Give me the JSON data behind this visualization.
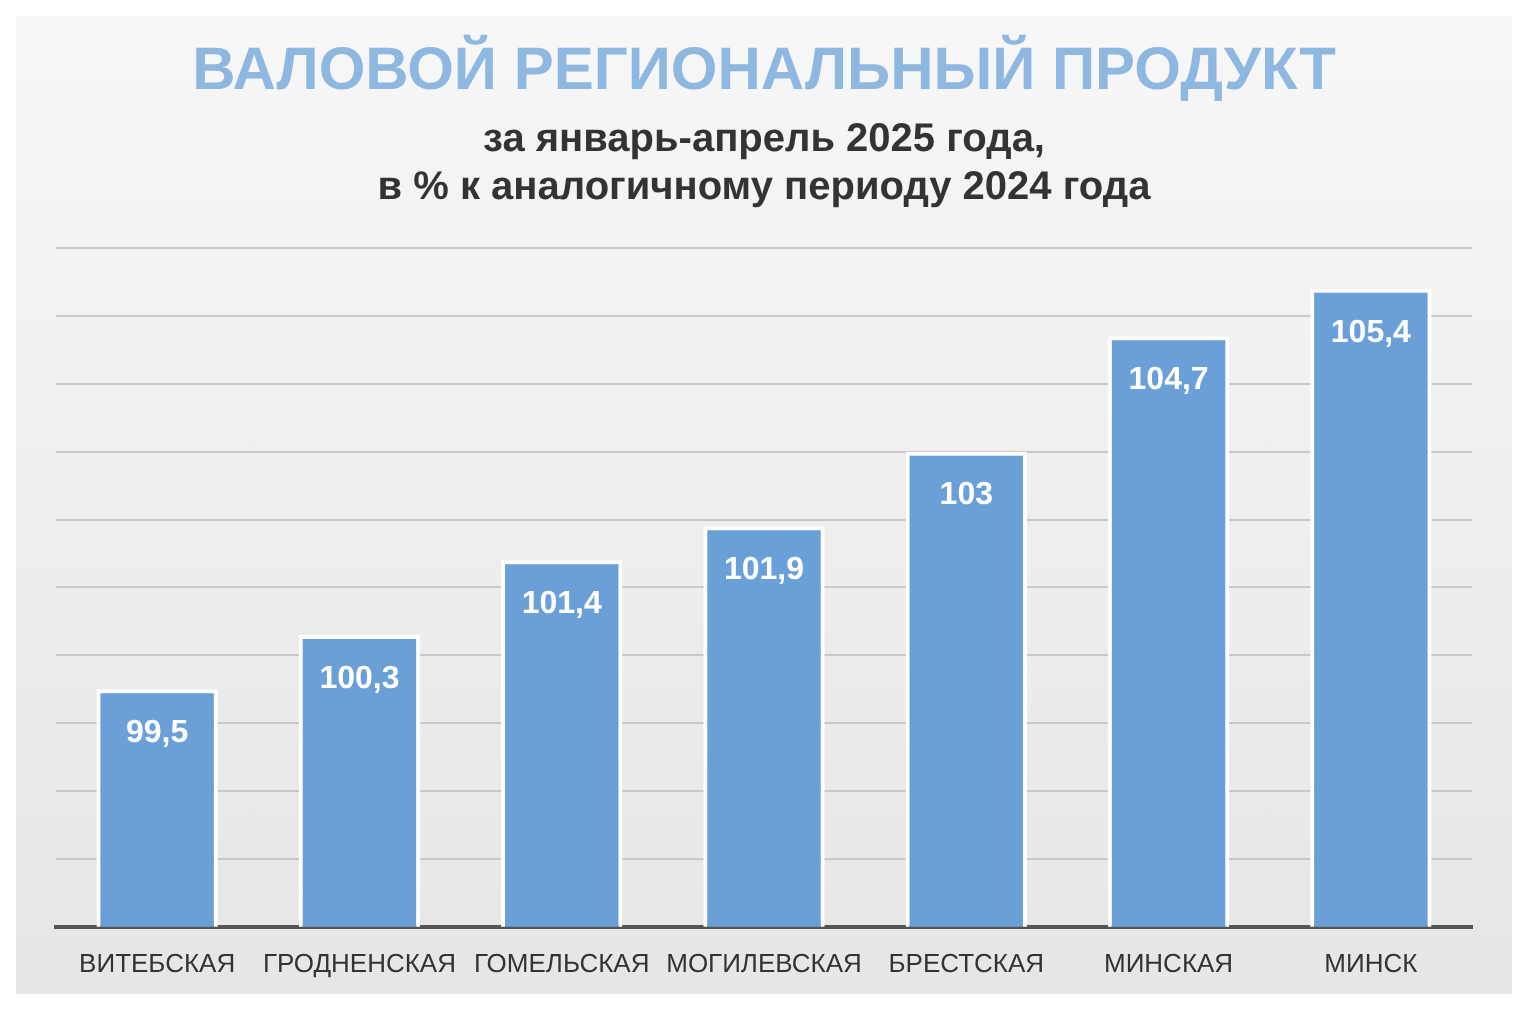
{
  "chart_data": {
    "type": "bar",
    "title": "ВАЛОВОЙ РЕГИОНАЛЬНЫЙ ПРОДУКТ",
    "subtitle": "за январь-апрель 2025 года,\nв % к аналогичному периоду 2024 года",
    "categories": [
      "ВИТЕБСКАЯ",
      "ГРОДНЕНСКАЯ",
      "ГОМЕЛЬСКАЯ",
      "МОГИЛЕВСКАЯ",
      "БРЕСТСКАЯ",
      "МИНСКАЯ",
      "МИНСК"
    ],
    "values": [
      99.5,
      100.3,
      101.4,
      101.9,
      103,
      104.7,
      105.4
    ],
    "value_labels": [
      "99,5",
      "100,3",
      "101,4",
      "101,9",
      "103",
      "104,7",
      "105,4"
    ],
    "color": "#6a9fd8",
    "ylim": [
      96,
      106
    ],
    "tick_labels": "x",
    "grid": "y",
    "legend": false
  }
}
